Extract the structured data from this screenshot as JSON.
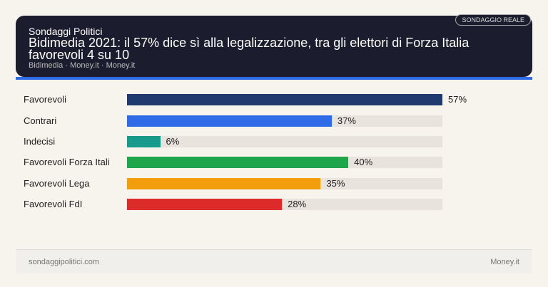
{
  "header": {
    "kicker": "Sondaggi Politici",
    "title": "Bidimedia 2021: il 57% dice sì alla legalizzazione, tra gli elettori di Forza Italia favorevoli 4 su 10",
    "sources": "Bidimedia · Money.it · Money.it",
    "badge": "SONDAGGIO REALE"
  },
  "footer": {
    "left": "sondaggipolitici.com",
    "right": "Money.it"
  },
  "colors": {
    "background": "#f7f3ed",
    "header": "#1b1c2e",
    "accent": "#2f6be6",
    "track": "#e8e3dc"
  },
  "chart_data": {
    "type": "bar",
    "orientation": "horizontal",
    "categories": [
      "Favorevoli",
      "Contrari",
      "Indecisi",
      "Favorevoli Forza Itali",
      "Favorevoli Lega",
      "Favorevoli FdI"
    ],
    "values": [
      57,
      37,
      6,
      40,
      35,
      28
    ],
    "labels": [
      "57%",
      "37%",
      "6%",
      "40%",
      "35%",
      "28%"
    ],
    "colors": [
      "#1e3a6e",
      "#2f6be6",
      "#179a8c",
      "#1fa64a",
      "#f29d0c",
      "#dd2b2b"
    ],
    "xlim": [
      0,
      57
    ],
    "grid": false
  }
}
